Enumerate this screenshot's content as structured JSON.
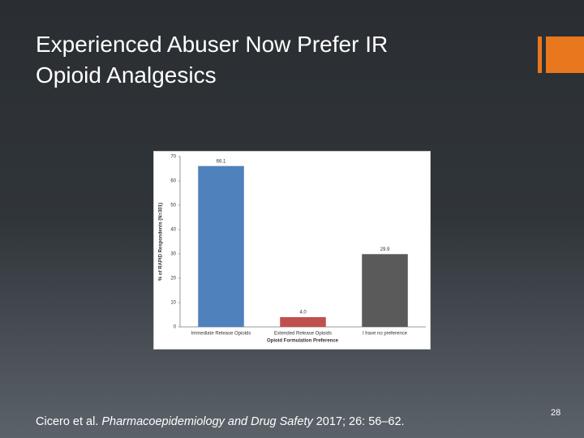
{
  "slide": {
    "title_lines": [
      "Experienced Abuser Now Prefer IR",
      "Opioid Analgesics"
    ],
    "citation": {
      "authors": "Cicero et al.",
      "journal": "Pharmacoepidemiology and Drug Safety",
      "details": "2017; 26: 56–62."
    },
    "page_number": "28"
  },
  "chart_data": {
    "type": "bar",
    "categories": [
      "Immediate Release Opioids",
      "Extended Release Opioids",
      "I have no preference"
    ],
    "values": [
      66.1,
      4,
      29.9
    ],
    "value_labels": [
      "66.1",
      "4.0",
      "29.9"
    ],
    "colors": [
      "#4f81bd",
      "#c0504d",
      "#5a5a5a"
    ],
    "x_label": "Opioid Formulation Preference",
    "y_label": "% of RAPID Respondents (N=301)",
    "ylim": [
      0,
      70
    ],
    "yticks": [
      0,
      10,
      20,
      30,
      40,
      50,
      60,
      70
    ]
  }
}
